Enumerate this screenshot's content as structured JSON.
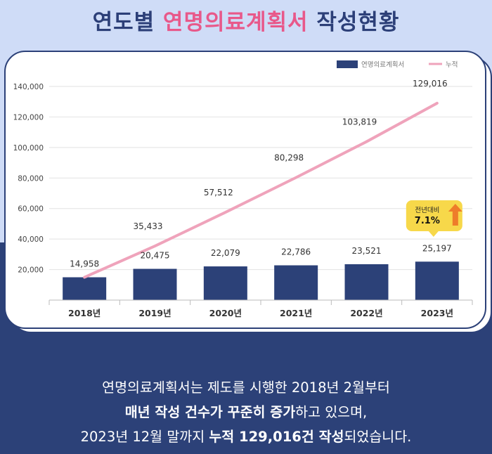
{
  "header": {
    "title_part1": "연도별 ",
    "title_highlight": "연명의료계획서",
    "title_part2": " 작성현황"
  },
  "colors": {
    "bar": "#2c4178",
    "line": "#efa3bb",
    "highlight": "#e8588a",
    "badge": "#f7d84a",
    "arrow": "#ee7d2a"
  },
  "chart_data": {
    "type": "bar",
    "categories": [
      "2018년",
      "2019년",
      "2020년",
      "2021년",
      "2022년",
      "2023년"
    ],
    "series": [
      {
        "name": "연명의료계획서",
        "type": "bar",
        "values": [
          14958,
          20475,
          22079,
          22786,
          23521,
          25197
        ],
        "labels": [
          "14,958",
          "20,475",
          "22,079",
          "22,786",
          "23,521",
          "25,197"
        ]
      },
      {
        "name": "누적",
        "type": "line",
        "values": [
          14958,
          35433,
          57512,
          80298,
          103819,
          129016
        ],
        "labels": [
          "",
          "35,433",
          "57,512",
          "80,298",
          "103,819",
          "129,016"
        ]
      }
    ],
    "ylim": [
      0,
      140000
    ],
    "yticks": [
      "140,000",
      "120,000",
      "100,000",
      "80,000",
      "60,000",
      "40,000",
      "20,000"
    ],
    "ytick_values": [
      140000,
      120000,
      100000,
      80000,
      60000,
      40000,
      20000
    ],
    "grid": true,
    "legend": "top-right",
    "badge": {
      "label": "전년대비",
      "value": "7.1%"
    }
  },
  "footer": {
    "line1": "연명의료계획서는 제도를 시행한 2018년 2월부터",
    "line2_bold": "매년 작성 건수가 꾸준히 증가",
    "line2_rest": "하고 있으며,",
    "line3_start": "2023년 12월 말까지 ",
    "line3_bold": "누적 129,016건 작성",
    "line3_end": "되었습니다."
  }
}
